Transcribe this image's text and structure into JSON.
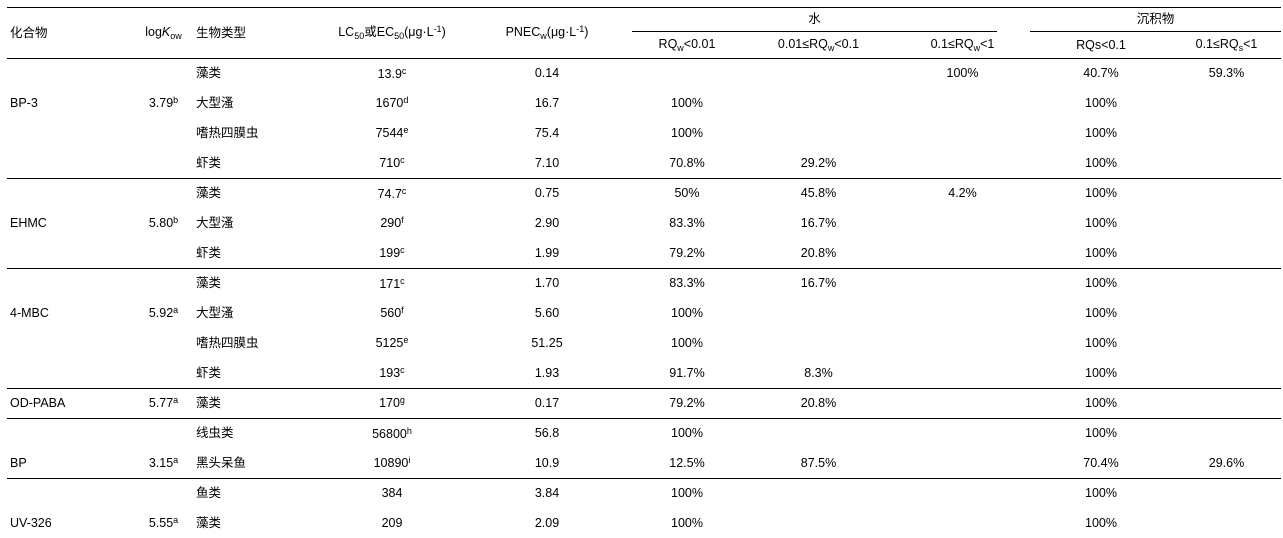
{
  "table": {
    "headers": {
      "compound": "化合物",
      "logkow": [
        "log",
        {
          "i": "K"
        },
        {
          "sub": "ow"
        }
      ],
      "bio_type": "生物类型",
      "lc50_ec50": [
        "LC",
        {
          "sub": "50"
        },
        "或EC",
        {
          "sub": "50"
        },
        "(μg·L",
        {
          "sup": "-1"
        },
        ")"
      ],
      "pnec": [
        "PNEC",
        {
          "sub": "w"
        },
        "(μg·L",
        {
          "sup": "-1"
        },
        ")"
      ],
      "water_group": "水",
      "sediment_group": "沉积物",
      "water_cols": [
        [
          "RQ",
          {
            "sub": "w"
          },
          "<0.01"
        ],
        [
          "0.01≤RQ",
          {
            "sub": "w"
          },
          "<0.1"
        ],
        [
          "0.1≤RQ",
          {
            "sub": "w"
          },
          "<1"
        ]
      ],
      "sediment_cols": [
        [
          "RQs<0.1"
        ],
        [
          "0.1≤RQ",
          {
            "sub": "s"
          },
          "<1"
        ]
      ]
    },
    "groups": [
      {
        "compound": "BP-3",
        "logkow": "3.79",
        "logkow_sup": "b",
        "rows": [
          {
            "bio": "藻类",
            "lc50": "13.9",
            "lc50_sup": "c",
            "pnec": "0.14",
            "rq": [
              "",
              "",
              "100%",
              "40.7%",
              "59.3%"
            ]
          },
          {
            "bio": "大型溞",
            "lc50": "1670",
            "lc50_sup": "d",
            "pnec": "16.7",
            "rq": [
              "100%",
              "",
              "",
              "100%",
              ""
            ]
          },
          {
            "bio": "嗜热四膜虫",
            "lc50": "7544",
            "lc50_sup": "e",
            "pnec": "75.4",
            "rq": [
              "100%",
              "",
              "",
              "100%",
              ""
            ]
          },
          {
            "bio": "虾类",
            "lc50": "710",
            "lc50_sup": "c",
            "pnec": "7.10",
            "rq": [
              "70.8%",
              "29.2%",
              "",
              "100%",
              ""
            ]
          }
        ]
      },
      {
        "compound": "EHMC",
        "logkow": "5.80",
        "logkow_sup": "b",
        "rows": [
          {
            "bio": "藻类",
            "lc50": "74.7",
            "lc50_sup": "c",
            "pnec": "0.75",
            "rq": [
              "50%",
              "45.8%",
              "4.2%",
              "100%",
              ""
            ]
          },
          {
            "bio": "大型溞",
            "lc50": "290",
            "lc50_sup": "f",
            "pnec": "2.90",
            "rq": [
              "83.3%",
              "16.7%",
              "",
              "100%",
              ""
            ]
          },
          {
            "bio": "虾类",
            "lc50": "199",
            "lc50_sup": "c",
            "pnec": "1.99",
            "rq": [
              "79.2%",
              "20.8%",
              "",
              "100%",
              ""
            ]
          }
        ]
      },
      {
        "compound": "4-MBC",
        "logkow": "5.92",
        "logkow_sup": "a",
        "rows": [
          {
            "bio": "藻类",
            "lc50": "171",
            "lc50_sup": "c",
            "pnec": "1.70",
            "rq": [
              "83.3%",
              "16.7%",
              "",
              "100%",
              ""
            ]
          },
          {
            "bio": "大型溞",
            "lc50": "560",
            "lc50_sup": "f",
            "pnec": "5.60",
            "rq": [
              "100%",
              "",
              "",
              "100%",
              ""
            ]
          },
          {
            "bio": "嗜热四膜虫",
            "lc50": "5125",
            "lc50_sup": "e",
            "pnec": "51.25",
            "rq": [
              "100%",
              "",
              "",
              "100%",
              ""
            ]
          },
          {
            "bio": "虾类",
            "lc50": "193",
            "lc50_sup": "c",
            "pnec": "1.93",
            "rq": [
              "91.7%",
              "8.3%",
              "",
              "100%",
              ""
            ]
          }
        ]
      },
      {
        "compound": "OD-PABA",
        "logkow": "5.77",
        "logkow_sup": "a",
        "rows": [
          {
            "bio": "藻类",
            "lc50": "170",
            "lc50_sup": "g",
            "pnec": "0.17",
            "rq": [
              "79.2%",
              "20.8%",
              "",
              "100%",
              ""
            ]
          }
        ]
      },
      {
        "compound": "BP",
        "logkow": "3.15",
        "logkow_sup": "a",
        "rows": [
          {
            "bio": "线虫类",
            "lc50": "56800",
            "lc50_sup": "h",
            "pnec": "56.8",
            "rq": [
              "100%",
              "",
              "",
              "100%",
              ""
            ]
          },
          {
            "bio": "黑头呆鱼",
            "lc50": "10890",
            "lc50_sup": "i",
            "pnec": "10.9",
            "rq": [
              "12.5%",
              "87.5%",
              "",
              "70.4%",
              "29.6%"
            ]
          }
        ]
      },
      {
        "compound": "UV-326",
        "logkow": "5.55",
        "logkow_sup": "a",
        "rows": [
          {
            "bio": "鱼类",
            "lc50": "384",
            "lc50_sup": "",
            "pnec": "3.84",
            "rq": [
              "100%",
              "",
              "",
              "100%",
              ""
            ]
          },
          {
            "bio": "藻类",
            "lc50": "209",
            "lc50_sup": "",
            "pnec": "2.09",
            "rq": [
              "100%",
              "",
              "",
              "100%",
              ""
            ]
          }
        ]
      }
    ]
  }
}
